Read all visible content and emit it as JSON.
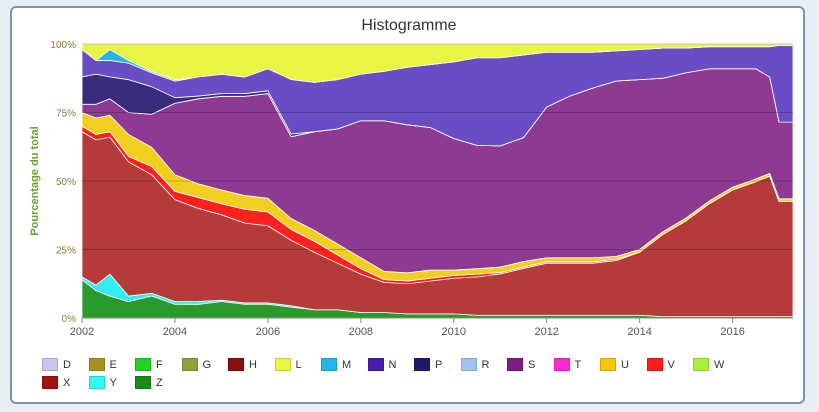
{
  "chart_data": {
    "type": "area",
    "stacking": "percent",
    "title": "Histogramme",
    "ylabel": "Pourcentage du total",
    "xlabel": "",
    "xlim": [
      2002,
      2017.3
    ],
    "ylim": [
      0,
      100
    ],
    "x_ticks": [
      "2002",
      "2004",
      "2006",
      "2008",
      "2010",
      "2012",
      "2014",
      "2016"
    ],
    "y_ticks": [
      "0%",
      "25%",
      "50%",
      "75%",
      "100%"
    ],
    "grid": true,
    "legend_position": "bottom",
    "x": [
      2002.0,
      2002.3,
      2002.6,
      2003.0,
      2003.5,
      2004.0,
      2004.5,
      2005.0,
      2005.5,
      2006.0,
      2006.5,
      2007.0,
      2007.5,
      2008.0,
      2008.5,
      2009.0,
      2009.5,
      2010.0,
      2010.5,
      2011.0,
      2011.5,
      2012.0,
      2012.5,
      2013.0,
      2013.5,
      2014.0,
      2014.5,
      2015.0,
      2015.5,
      2016.0,
      2016.5,
      2016.8,
      2017.0,
      2017.3
    ],
    "series": [
      {
        "name": "Z",
        "color": "#2a9a2a",
        "values": [
          14,
          10,
          8,
          6,
          8,
          5,
          5,
          6,
          5,
          5,
          4,
          3,
          3,
          2,
          2,
          1.5,
          1.5,
          1.5,
          1,
          1,
          1,
          1,
          1,
          1,
          1,
          1,
          0.5,
          0.5,
          0.5,
          0.5,
          0.5,
          0.5,
          0.5,
          0.5
        ]
      },
      {
        "name": "Y",
        "color": "#33ecf2",
        "values": [
          1,
          2,
          8,
          2,
          1,
          1,
          1,
          0.5,
          0.5,
          0.5,
          0.5,
          0,
          0,
          0,
          0,
          0,
          0,
          0,
          0,
          0,
          0,
          0,
          0,
          0,
          0,
          0,
          0,
          0,
          0,
          0,
          0,
          0,
          0,
          0
        ]
      },
      {
        "name": "X",
        "color": "#b53a3a",
        "values": [
          53,
          53,
          50,
          49,
          43,
          37,
          34,
          31,
          29,
          28,
          24,
          21,
          17,
          14,
          11,
          11,
          12,
          13,
          14,
          15,
          17,
          19,
          19,
          19,
          20,
          23,
          30,
          35,
          41,
          46,
          49,
          51,
          42,
          42
        ]
      },
      {
        "name": "V",
        "color": "#ff2020",
        "values": [
          2,
          2,
          2,
          2,
          3,
          3,
          4,
          4,
          5,
          5,
          4,
          4,
          3,
          2,
          1,
          1,
          1,
          1,
          1,
          0.5,
          0.5,
          0.5,
          0.5,
          0.5,
          0.5,
          0,
          0,
          0,
          0,
          0,
          0,
          0,
          0,
          0
        ]
      },
      {
        "name": "U",
        "color": "#f2cf1f",
        "values": [
          5,
          6,
          6,
          8,
          7,
          6,
          5,
          5,
          5,
          5,
          4,
          4,
          4,
          4,
          3,
          3,
          3,
          2,
          2,
          2,
          2,
          1.5,
          1.5,
          1.5,
          1,
          1,
          1,
          1,
          1,
          1,
          1,
          1,
          1,
          1
        ]
      },
      {
        "name": "T",
        "color": "#ff2ad1",
        "values": [
          0,
          0,
          0,
          0,
          0,
          0,
          0,
          0,
          0,
          0,
          0,
          0,
          0,
          0,
          0,
          0,
          0,
          0,
          0,
          0,
          0,
          0,
          0,
          0,
          0,
          0,
          0,
          0,
          0,
          0,
          0,
          0,
          0,
          0
        ]
      },
      {
        "name": "S",
        "color": "#8e3a92",
        "values": [
          3,
          5,
          6,
          8,
          12,
          26,
          31,
          34,
          36,
          38,
          30,
          36,
          42,
          50,
          55,
          54,
          52,
          48,
          45,
          44,
          45,
          55,
          59,
          62,
          64,
          62,
          56,
          53,
          48,
          43,
          40,
          35,
          28,
          28
        ]
      },
      {
        "name": "R",
        "color": "#a0c4ef",
        "values": [
          0,
          0,
          0,
          0,
          0,
          0,
          0,
          0,
          0,
          0,
          0,
          0,
          0,
          0,
          0,
          0,
          0,
          0,
          0,
          0,
          0,
          0,
          0,
          0,
          0,
          0,
          0,
          0,
          0,
          0,
          0,
          0,
          0,
          0
        ]
      },
      {
        "name": "P",
        "color": "#3a2c7c",
        "values": [
          10,
          11,
          8,
          12,
          10,
          2,
          1,
          1,
          1,
          1,
          1,
          0,
          0,
          0,
          0,
          0,
          0,
          0,
          0,
          0,
          0,
          0,
          0,
          0,
          0,
          0,
          0,
          0,
          0,
          0,
          0,
          0,
          0,
          0
        ]
      },
      {
        "name": "N",
        "color": "#6a4cc4",
        "values": [
          10,
          5,
          6,
          6,
          5,
          6,
          7,
          7,
          6,
          8,
          20,
          18,
          18,
          17,
          18,
          21,
          23,
          28,
          32,
          32,
          30,
          20,
          16,
          13,
          11,
          11,
          11,
          9,
          8,
          8,
          8,
          11,
          28,
          28
        ]
      },
      {
        "name": "M",
        "color": "#22b6e6",
        "values": [
          0,
          0,
          4,
          1,
          0.5,
          0.5,
          0,
          0,
          0,
          0,
          0,
          0,
          0,
          0,
          0,
          0,
          0,
          0,
          0,
          0,
          0,
          0,
          0,
          0,
          0,
          0,
          0,
          0,
          0,
          0,
          0,
          0,
          0,
          0
        ]
      },
      {
        "name": "L",
        "color": "#e8f542",
        "values": [
          2,
          6,
          2,
          6,
          10,
          13,
          12,
          11,
          12,
          9,
          13,
          14,
          13,
          11,
          10,
          8.5,
          7.5,
          6.5,
          5,
          5,
          4,
          3,
          3,
          3,
          2.5,
          2,
          1.5,
          1.5,
          1,
          1,
          1,
          1,
          0.5,
          0.5
        ]
      }
    ],
    "legend": [
      {
        "name": "D",
        "color": "#cdc4f2"
      },
      {
        "name": "E",
        "color": "#a89020"
      },
      {
        "name": "F",
        "color": "#1fd41f"
      },
      {
        "name": "G",
        "color": "#8ea23a"
      },
      {
        "name": "H",
        "color": "#8a1010"
      },
      {
        "name": "L",
        "color": "#e8f542"
      },
      {
        "name": "M",
        "color": "#22b6e6"
      },
      {
        "name": "N",
        "color": "#4a1cb4"
      },
      {
        "name": "P",
        "color": "#1e1a6a"
      },
      {
        "name": "R",
        "color": "#a0c4ef"
      },
      {
        "name": "S",
        "color": "#7a1e82"
      },
      {
        "name": "T",
        "color": "#ff2ad1"
      },
      {
        "name": "U",
        "color": "#f9c60a"
      },
      {
        "name": "V",
        "color": "#ff1c1c"
      },
      {
        "name": "W",
        "color": "#a9f03a"
      },
      {
        "name": "X",
        "color": "#a31212"
      },
      {
        "name": "Y",
        "color": "#33f7f2"
      },
      {
        "name": "Z",
        "color": "#1a8a1a"
      }
    ]
  }
}
